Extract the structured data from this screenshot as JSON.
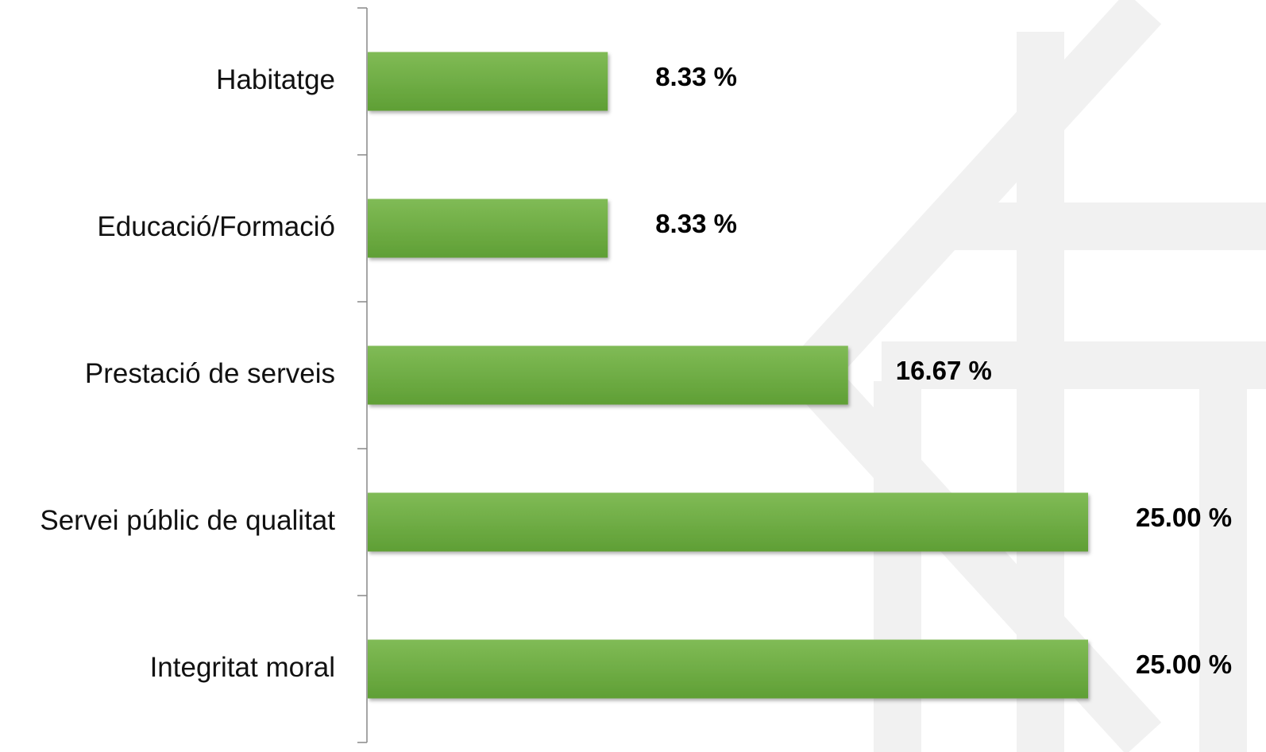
{
  "chart_data": {
    "type": "bar",
    "orientation": "horizontal",
    "categories": [
      "Habitatge",
      "Educació/Formació",
      "Prestació de serveis",
      "Servei públic de qualitat",
      "Integritat moral"
    ],
    "values": [
      8.33,
      8.33,
      16.67,
      25,
      25
    ],
    "value_labels": [
      "8.33 %",
      "8.33 %",
      "16.67 %",
      "25.00 %",
      "25.00 %"
    ],
    "color": "#6aab3e",
    "xlim": [
      0,
      25
    ]
  }
}
